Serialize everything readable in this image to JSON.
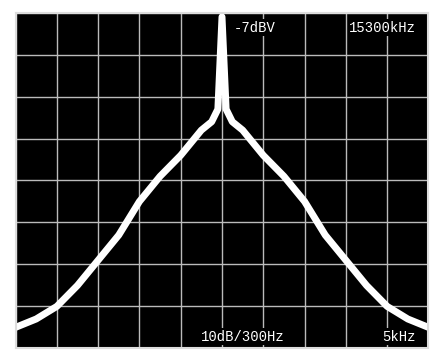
{
  "chart_data": {
    "type": "line",
    "annotations": [
      "-7dBV",
      "15300kHz",
      "10dB/300Hz",
      "5kHz"
    ],
    "x": [
      -25,
      -22.5,
      -20,
      -17.5,
      -15,
      -12.5,
      -10,
      -7.5,
      -5,
      -3.75,
      -2.5,
      -1.25,
      -0.5,
      0,
      0.5,
      1.25,
      2.5,
      3.75,
      5,
      7.5,
      10,
      12.5,
      15,
      17.5,
      20,
      22.5,
      25
    ],
    "values": [
      -82,
      -80,
      -77,
      -72,
      -66,
      -60,
      -52,
      -46,
      -41,
      -38,
      -35,
      -33,
      -30,
      -8,
      -30,
      -33,
      -35,
      -38,
      -41,
      -46,
      -52,
      -60,
      -66,
      -72,
      -77,
      -80,
      -82
    ],
    "color": "#ffffff",
    "xlim": [
      -25,
      25
    ],
    "xticks": [
      -25,
      -20,
      -15,
      -10,
      -5,
      0,
      5,
      10,
      15,
      20,
      25
    ],
    "ylim": [
      -87,
      -7
    ],
    "yticks": [
      -87,
      -77,
      -67,
      -57,
      -47,
      -37,
      -27,
      -17,
      -7
    ],
    "grid": true,
    "tick_labels": false
  }
}
